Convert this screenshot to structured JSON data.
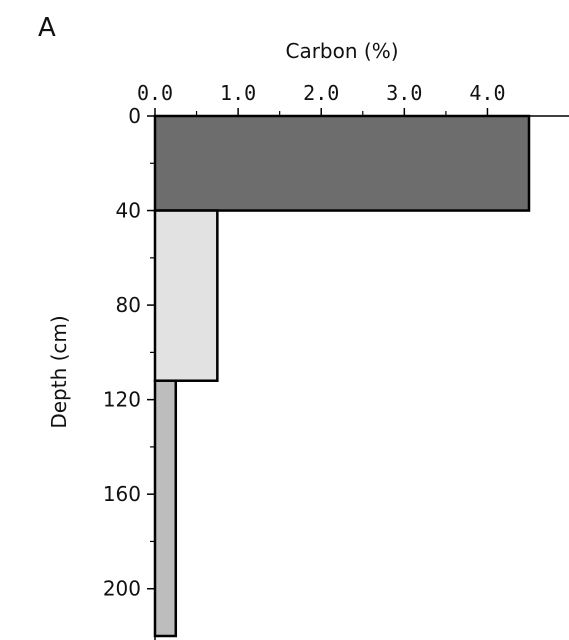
{
  "panel_label": "A",
  "chart_data": {
    "type": "bar",
    "orientation": "horizontal",
    "title": "",
    "xlabel": "Carbon (%)",
    "ylabel": "Depth (cm)",
    "x_axis_position": "top",
    "xlim": [
      0,
      4.5
    ],
    "x_ticks": [
      0.0,
      1.0,
      2.0,
      3.0,
      4.0
    ],
    "x_tick_labels": [
      "0.0",
      "1.0",
      "2.0",
      "3.0",
      "4.0"
    ],
    "ylim": [
      0,
      220
    ],
    "y_inverted": true,
    "y_ticks": [
      0,
      40,
      80,
      120,
      160,
      200
    ],
    "y_tick_labels": [
      "0",
      "40",
      "80",
      "120",
      "160",
      "200"
    ],
    "grid": false,
    "layers": [
      {
        "depth_top": 0,
        "depth_bottom": 40,
        "carbon": 4.5,
        "color": "#6d6d6d"
      },
      {
        "depth_top": 40,
        "depth_bottom": 112,
        "carbon": 0.75,
        "color": "#e2e2e2"
      },
      {
        "depth_top": 112,
        "depth_bottom": 220,
        "carbon": 0.25,
        "color": "#bdbdbd"
      }
    ]
  }
}
